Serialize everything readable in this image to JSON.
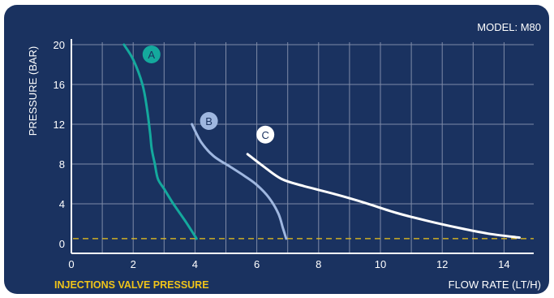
{
  "model_label": "MODEL: M80",
  "note": "INJECTIONS VALVE PRESSURE",
  "colors": {
    "background": "#1a3260",
    "grid": "#7f8ba8",
    "axis": "#ffffff",
    "text": "#ffffff",
    "note": "#f0c419",
    "reference_line": "#f0c419"
  },
  "chart_data": {
    "type": "line",
    "title": "",
    "xlabel": "FLOW RATE (LT/H)",
    "ylabel": "PRESSURE (BAR)",
    "xlim": [
      0,
      14.8
    ],
    "ylim": [
      0,
      21
    ],
    "xticks": [
      0,
      2,
      4,
      6,
      8,
      10,
      12,
      14
    ],
    "yticks": [
      0,
      4,
      8,
      12,
      16,
      20
    ],
    "grid": true,
    "reference_line": {
      "y": 0.5,
      "style": "dashed",
      "label": "INJECTIONS VALVE PRESSURE",
      "color": "#f0c419"
    },
    "series": [
      {
        "name": "A",
        "color": "#14a99d",
        "x": [
          1.7,
          2.0,
          2.3,
          2.45,
          2.55,
          2.6,
          2.7,
          2.8,
          3.0,
          3.3,
          3.7,
          4.05
        ],
        "y": [
          20,
          18.5,
          16,
          13.5,
          11,
          9.5,
          8,
          6.5,
          5.5,
          4,
          2.2,
          0.5
        ]
      },
      {
        "name": "B",
        "color": "#9fb7e0",
        "x": [
          3.9,
          4.2,
          4.6,
          5.1,
          5.6,
          6.0,
          6.4,
          6.7,
          6.85,
          6.95
        ],
        "y": [
          12,
          10.2,
          8.8,
          7.8,
          6.8,
          5.9,
          4.6,
          3.0,
          1.5,
          0.5
        ]
      },
      {
        "name": "C",
        "color": "#ffffff",
        "x": [
          5.7,
          6.2,
          6.8,
          7.5,
          8.5,
          9.5,
          10.5,
          11.5,
          12.5,
          13.5,
          14.5
        ],
        "y": [
          9,
          7.8,
          6.5,
          5.8,
          5.0,
          4.1,
          3.1,
          2.3,
          1.6,
          1.0,
          0.6
        ]
      }
    ]
  }
}
